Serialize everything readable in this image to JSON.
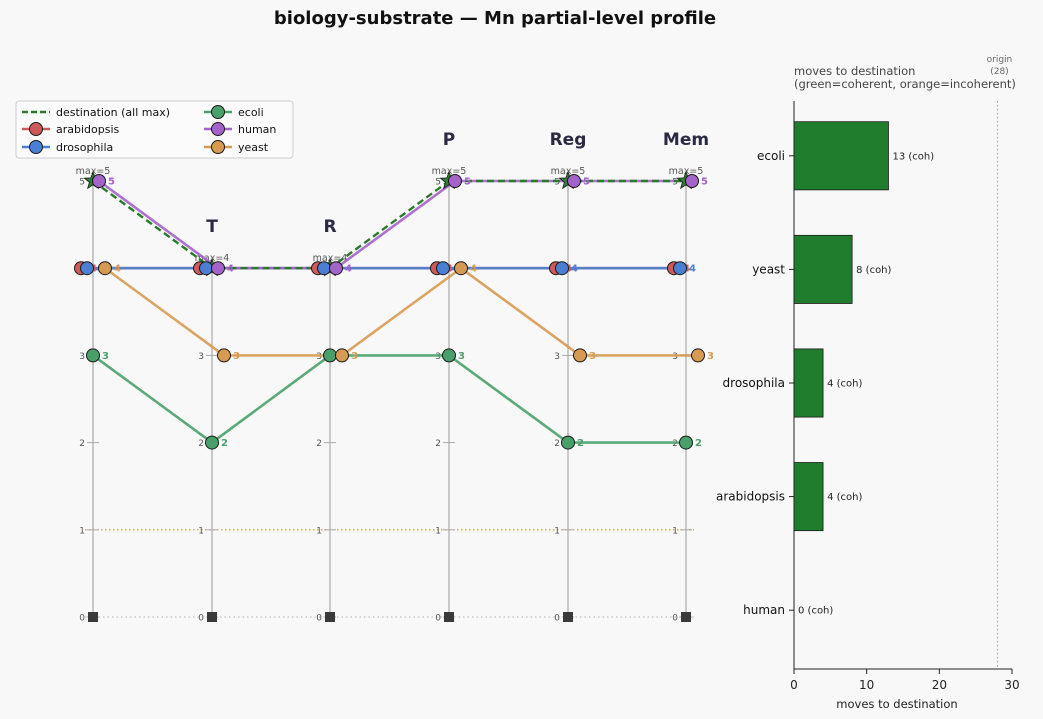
{
  "title": "biology-substrate — Mn partial-level profile",
  "chart_data": [
    {
      "type": "line",
      "name": "parallel-coordinates",
      "axes": [
        "",
        "T",
        "R",
        "P",
        "Reg",
        "Mem"
      ],
      "axis_max": [
        5,
        4,
        4,
        5,
        5,
        5
      ],
      "axis_max_labels": [
        "max=5",
        "max=4",
        "max=4",
        "max=5",
        "max=5",
        "max=5"
      ],
      "ylim": [
        0,
        5
      ],
      "yticks": [
        0,
        1,
        2,
        3,
        4,
        5
      ],
      "origin_y": 0,
      "series": [
        {
          "name": "arabidopsis",
          "values": [
            4,
            4,
            4,
            4,
            4,
            4
          ],
          "color": "#d05a5a"
        },
        {
          "name": "drosophila",
          "values": [
            4,
            4,
            4,
            4,
            4,
            4
          ],
          "color": "#4a7fd4"
        },
        {
          "name": "ecoli",
          "values": [
            3,
            2,
            3,
            3,
            2,
            2
          ],
          "color": "#4aa06a"
        },
        {
          "name": "human",
          "values": [
            5,
            4,
            4,
            5,
            5,
            5
          ],
          "color": "#a363c9"
        },
        {
          "name": "yeast",
          "values": [
            4,
            3,
            3,
            4,
            3,
            3
          ],
          "color": "#d69a52"
        }
      ],
      "destination": {
        "name": "destination (all max)",
        "values": [
          5,
          4,
          4,
          5,
          5,
          5
        ],
        "color": "#2a7a2a"
      },
      "legend": {
        "placement": "top-left",
        "entries": [
          "destination (all max)",
          "arabidopsis",
          "drosophila",
          "ecoli",
          "human",
          "yeast"
        ]
      }
    },
    {
      "type": "bar",
      "orientation": "horizontal",
      "title_line1": "moves to destination",
      "title_line2": "(green=coherent, orange=incoherent)",
      "xlabel": "moves to destination",
      "categories": [
        "ecoli",
        "yeast",
        "drosophila",
        "arabidopsis",
        "human"
      ],
      "values": [
        13,
        8,
        4,
        4,
        0
      ],
      "labels": [
        "13  (coh)",
        "8  (coh)",
        "4  (coh)",
        "4  (coh)",
        "0  (coh)"
      ],
      "xlim": [
        0,
        30
      ],
      "xticks": [
        0,
        10,
        20,
        30
      ],
      "origin": {
        "value": 28,
        "label_line1": "origin",
        "label_line2": "(28)"
      },
      "colors": {
        "coherent": "#217d2e",
        "incoherent": "#e08a2a"
      }
    }
  ]
}
